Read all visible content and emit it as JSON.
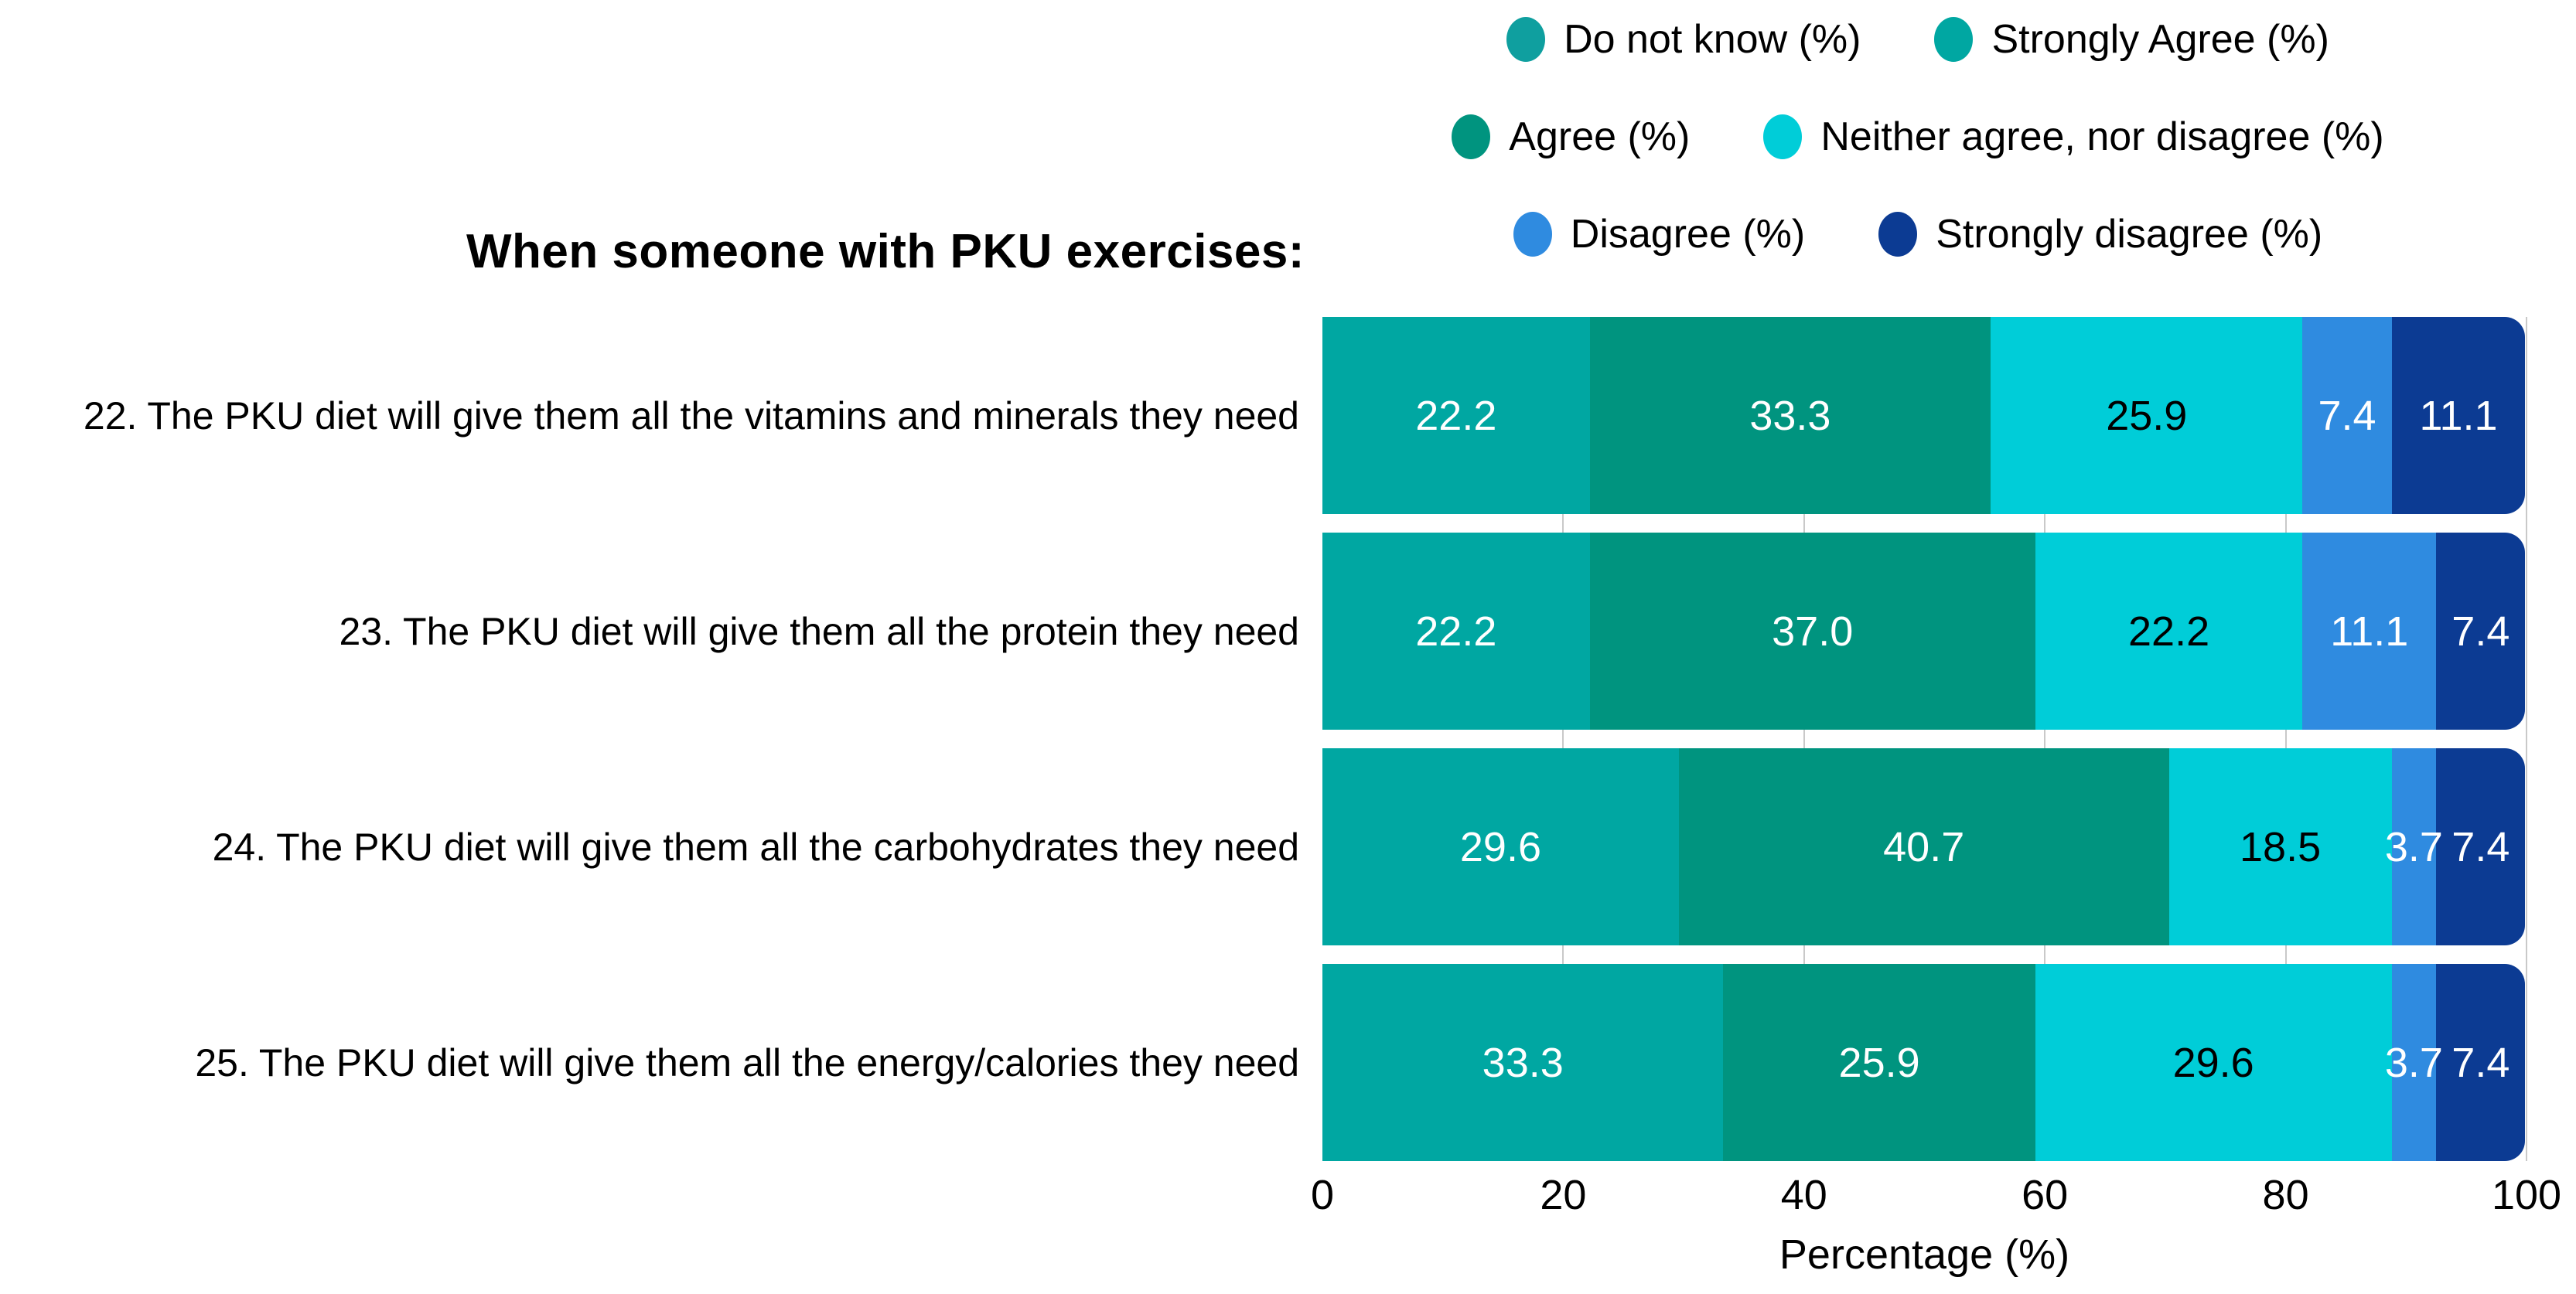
{
  "chart_data": {
    "type": "bar",
    "orientation": "horizontal",
    "stacked": true,
    "title": "When someone with PKU exercises:",
    "xlabel": "Percentage (%)",
    "xlim": [
      0,
      100
    ],
    "x_ticks": [
      0,
      20,
      40,
      60,
      80,
      100
    ],
    "grid": "vertical-light-gray",
    "legend_position": "top-right",
    "categories": [
      "22. The PKU diet will give them all the vitamins and minerals they need",
      "23. The PKU diet will give them all the protein they need",
      "24. The PKU diet will give them all the carbohydrates they need",
      "25. The PKU diet will give them all the energy/calories they need"
    ],
    "series": [
      {
        "name": "Do not know (%)",
        "color": "#0f9f9f",
        "label_color": "#ffffff",
        "values": [
          0,
          0,
          0,
          0
        ]
      },
      {
        "name": "Strongly Agree (%)",
        "color": "#00a7a2",
        "label_color": "#ffffff",
        "values": [
          22.2,
          22.2,
          29.6,
          33.3
        ]
      },
      {
        "name": "Agree (%)",
        "color": "#00947f",
        "label_color": "#ffffff",
        "values": [
          33.3,
          37.0,
          40.7,
          25.9
        ]
      },
      {
        "name": "Neither agree, nor disagree (%)",
        "color": "#00cdd8",
        "label_color": "#000000",
        "values": [
          25.9,
          22.2,
          18.5,
          29.6
        ]
      },
      {
        "name": "Disagree (%)",
        "color": "#2f8be0",
        "label_color": "#ffffff",
        "values": [
          7.4,
          11.1,
          3.7,
          3.7
        ]
      },
      {
        "name": "Strongly disagree (%)",
        "color": "#0c3b93",
        "label_color": "#ffffff",
        "values": [
          11.1,
          7.4,
          7.4,
          7.4
        ]
      }
    ],
    "legend_rows": [
      [
        "Do not know (%)",
        "Strongly Agree (%)"
      ],
      [
        "Agree (%)",
        "Neither agree, nor disagree (%)"
      ],
      [
        "Disagree (%)",
        "Strongly disagree (%)"
      ]
    ]
  }
}
